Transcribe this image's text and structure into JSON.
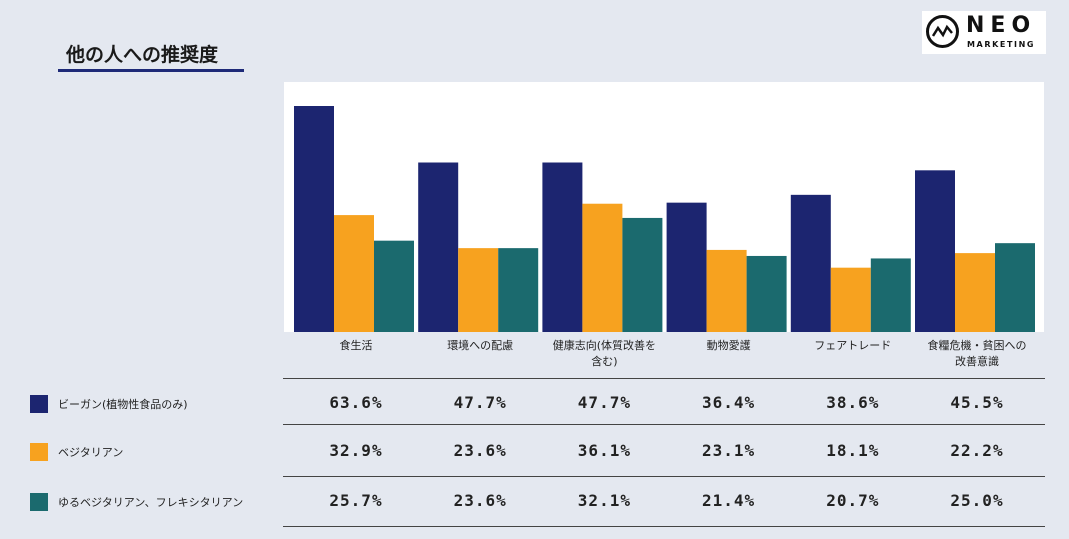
{
  "title": "他の人への推奨度",
  "logo": {
    "name": "NEO",
    "sub": "MARKETING"
  },
  "chart_data": {
    "type": "bar",
    "categories": [
      "食生活",
      "環境への配慮",
      "健康志向(体質改善を含む)",
      "動物愛護",
      "フェアトレード",
      "食糧危機・貧困への改善意識"
    ],
    "category_labels": [
      [
        "食生活"
      ],
      [
        "環境への配慮"
      ],
      [
        "健康志向(体質改善を",
        "含む)"
      ],
      [
        "動物愛護"
      ],
      [
        "フェアトレード"
      ],
      [
        "食糧危機・貧困への",
        "改善意識"
      ]
    ],
    "series": [
      {
        "name": "ビーガン(植物性食品のみ)",
        "color": "#1c2570",
        "values": [
          63.6,
          47.7,
          47.7,
          36.4,
          38.6,
          45.5
        ]
      },
      {
        "name": "ベジタリアン",
        "color": "#f7a21f",
        "values": [
          32.9,
          23.6,
          36.1,
          23.1,
          18.1,
          22.2
        ]
      },
      {
        "name": "ゆるベジタリアン、フレキシタリアン",
        "color": "#1b6a6e",
        "values": [
          25.7,
          23.6,
          32.1,
          21.4,
          20.7,
          25.0
        ]
      }
    ],
    "table": [
      [
        "63.6%",
        "47.7%",
        "47.7%",
        "36.4%",
        "38.6%",
        "45.5%"
      ],
      [
        "32.9%",
        "23.6%",
        "36.1%",
        "23.1%",
        "18.1%",
        "22.2%"
      ],
      [
        "25.7%",
        "23.6%",
        "32.1%",
        "21.4%",
        "20.7%",
        "25.0%"
      ]
    ],
    "ylim": [
      0,
      70
    ],
    "grid": false
  }
}
